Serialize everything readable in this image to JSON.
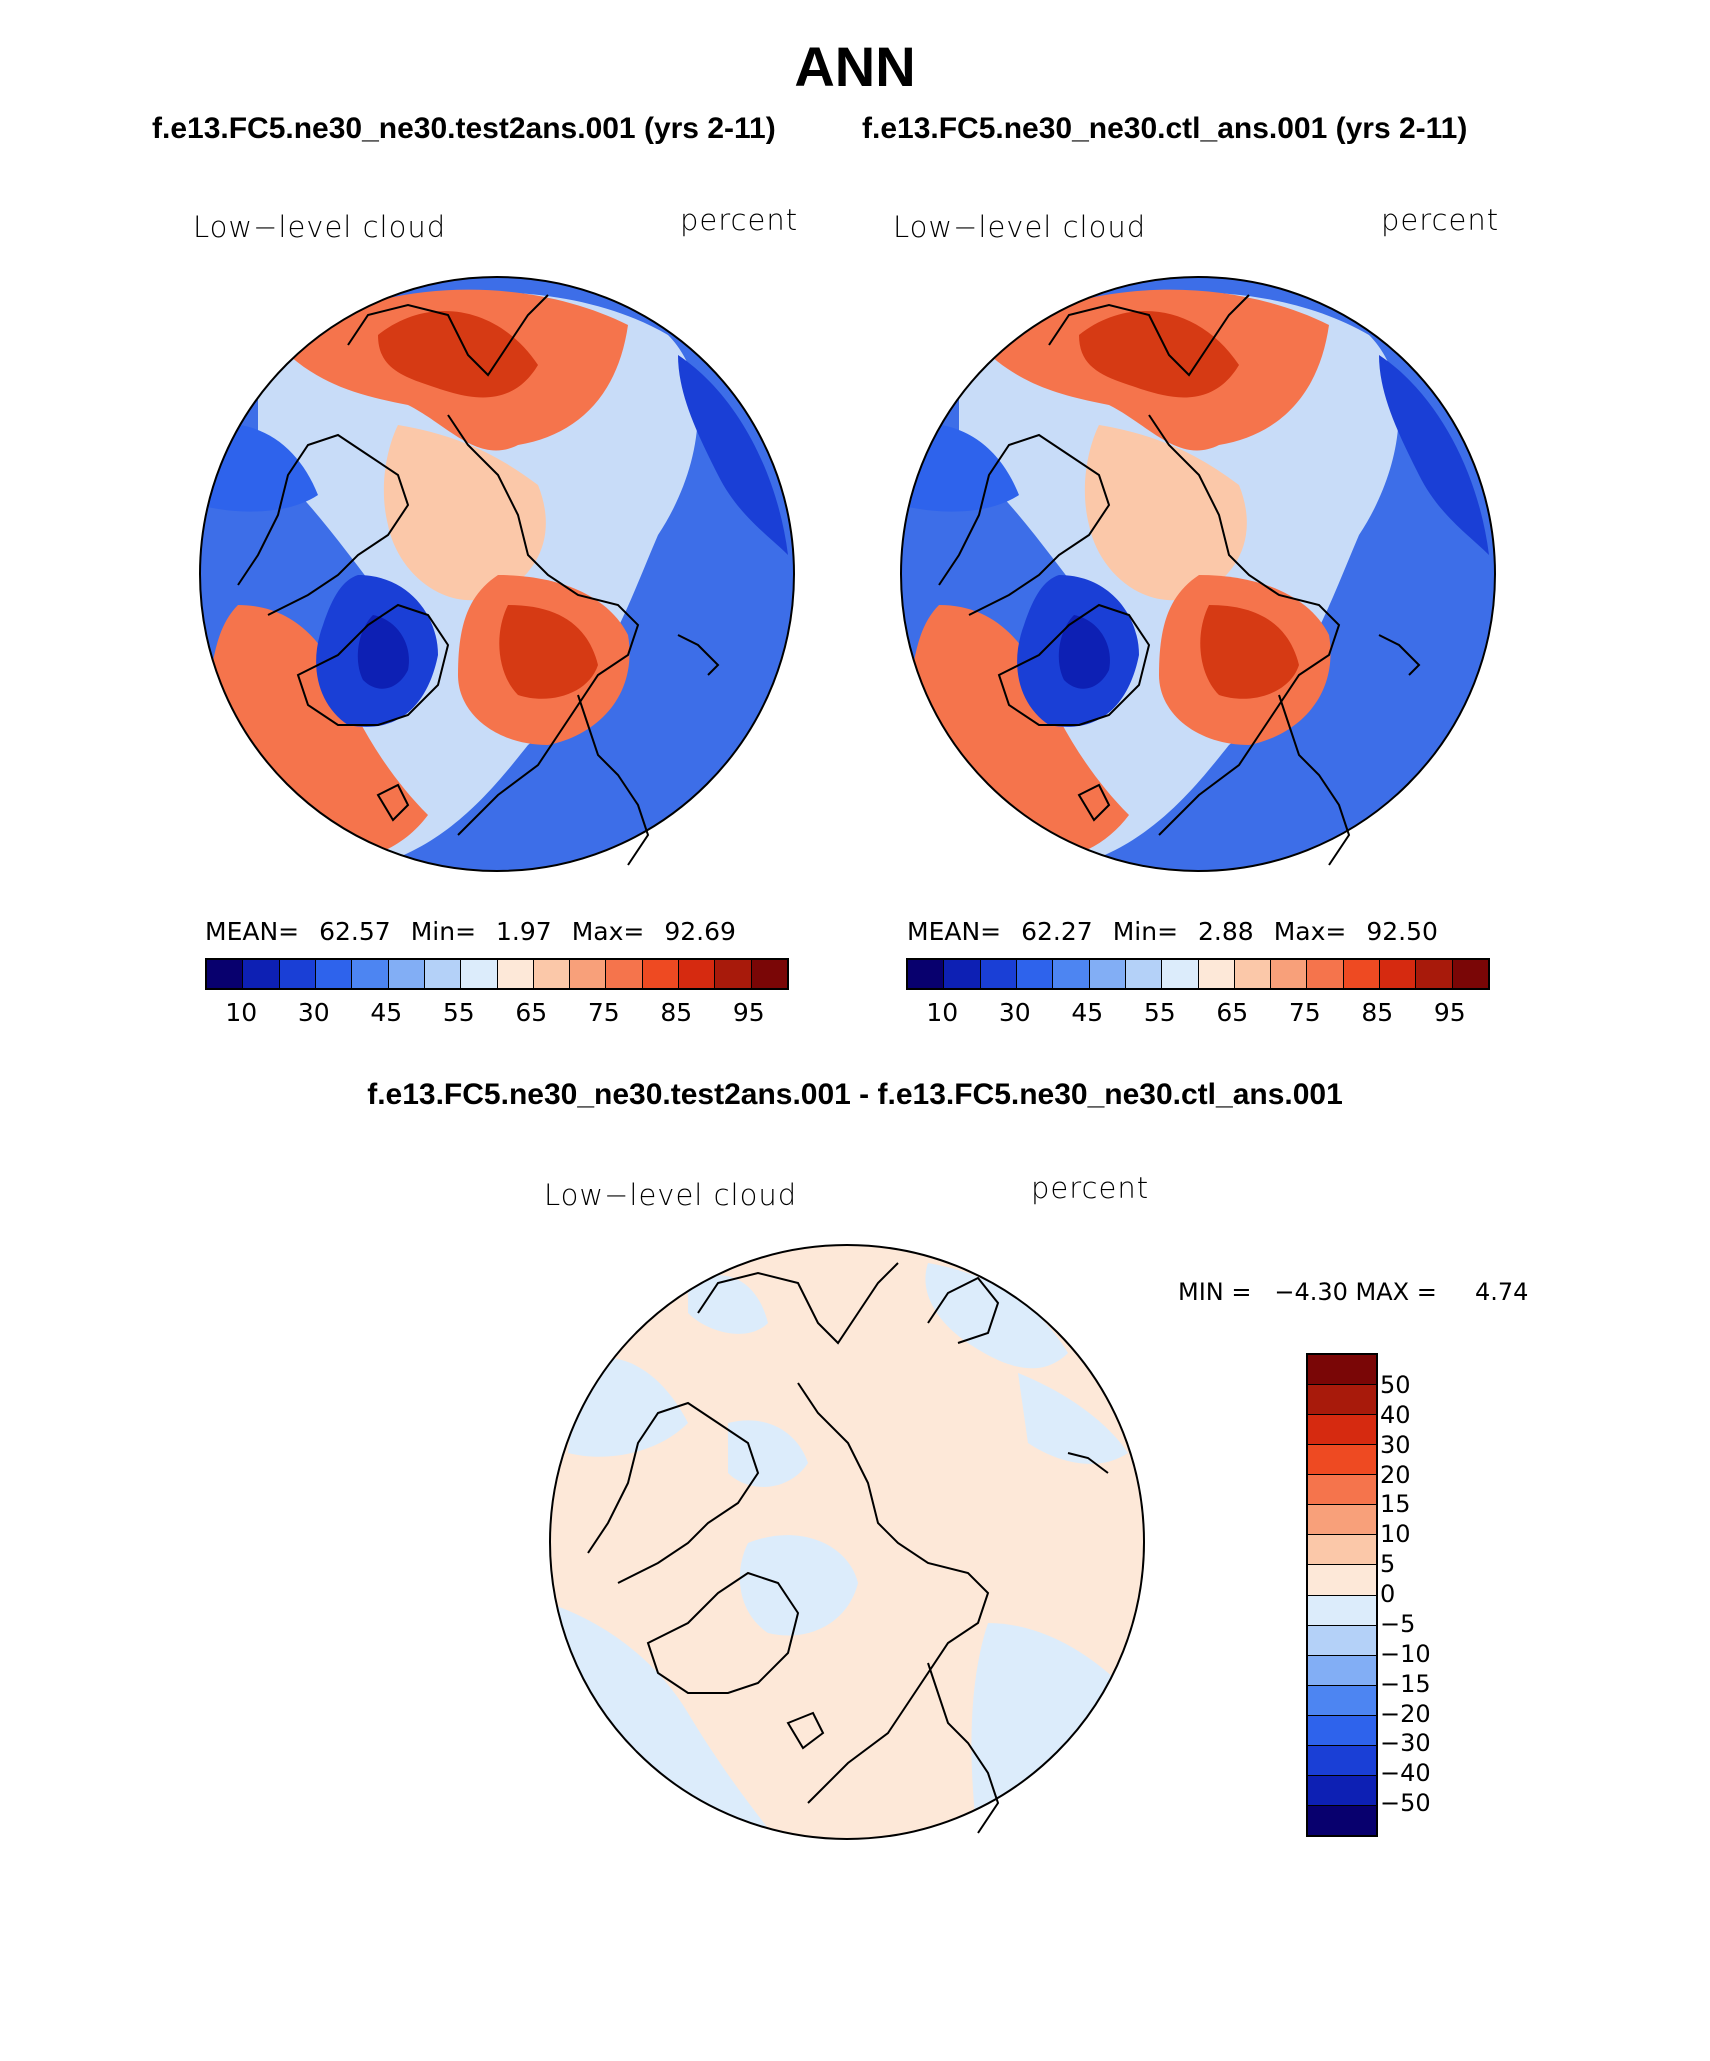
{
  "title": "ANN",
  "case_titles": [
    "f.e13.FC5.ne30_ne30.test2ans.001 (yrs 2-11)",
    "f.e13.FC5.ne30_ne30.ctl_ans.001 (yrs 2-11)"
  ],
  "diff_title": "f.e13.FC5.ne30_ne30.test2ans.001 - f.e13.FC5.ne30_ne30.ctl_ans.001",
  "panels": [
    {
      "variable": "Low−level cloud",
      "units": "percent",
      "mean_label": "MEAN=",
      "mean": "62.57",
      "min_label": "Min=",
      "min": "1.97",
      "max_label": "Max=",
      "max": "92.69"
    },
    {
      "variable": "Low−level cloud",
      "units": "percent",
      "mean_label": "MEAN=",
      "mean": "62.27",
      "min_label": "Min=",
      "min": "2.88",
      "max_label": "Max=",
      "max": "92.50"
    }
  ],
  "diff_panel": {
    "variable": "Low−level cloud",
    "units": "percent",
    "minmax_text": "MIN =   −4.30 MAX =     4.74"
  },
  "colorbar": {
    "ticks": [
      "10",
      "30",
      "45",
      "55",
      "65",
      "75",
      "85",
      "95"
    ],
    "colors": [
      "#08006e",
      "#0d20b4",
      "#1a3fd6",
      "#2e63ec",
      "#4d85f2",
      "#82aef5",
      "#b4d1f8",
      "#dcecfb",
      "#fde8d8",
      "#fbc8a9",
      "#f8a07a",
      "#f5744c",
      "#ee4a22",
      "#d62a10",
      "#a81a0b",
      "#7a0606"
    ]
  },
  "diff_colorbar": {
    "labels": [
      "50",
      "40",
      "30",
      "20",
      "15",
      "10",
      "5",
      "0",
      "−5",
      "−10",
      "−15",
      "−20",
      "−30",
      "−40",
      "−50"
    ],
    "colors": [
      "#7a0606",
      "#a81a0b",
      "#d62a10",
      "#ee4a22",
      "#f5744c",
      "#f8a07a",
      "#fbc8a9",
      "#fde8d8",
      "#dcecfb",
      "#b4d1f8",
      "#82aef5",
      "#4d85f2",
      "#2e63ec",
      "#1a3fd6",
      "#0d20b4",
      "#08006e"
    ]
  },
  "map_colors": {
    "ocean_blue": "#3d6ee8",
    "light_blue": "#c8dcf8",
    "orange": "#f5744c",
    "red": "#d63a14",
    "peach": "#fde8d8",
    "diff_blue": "#dcecfb"
  }
}
